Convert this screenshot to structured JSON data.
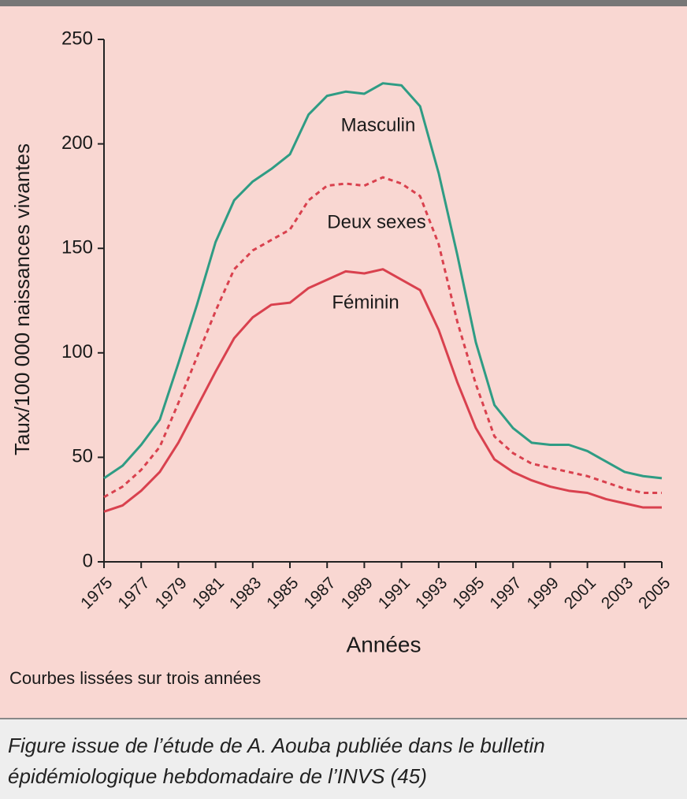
{
  "chart_data": {
    "type": "line",
    "y_label": "Taux/100 000 naissances vivantes",
    "x_label": "Années",
    "note": "Courbes lissées sur trois années",
    "x": [
      1975,
      1976,
      1977,
      1978,
      1979,
      1980,
      1981,
      1982,
      1983,
      1984,
      1985,
      1986,
      1987,
      1988,
      1989,
      1990,
      1991,
      1992,
      1993,
      1994,
      1995,
      1996,
      1997,
      1998,
      1999,
      2000,
      2001,
      2002,
      2003,
      2004,
      2005
    ],
    "series": [
      {
        "name": "Masculin",
        "color": "#2f9c84",
        "dashed": false,
        "values": [
          40,
          46,
          56,
          68,
          95,
          123,
          153,
          173,
          182,
          188,
          195,
          214,
          223,
          225,
          224,
          229,
          228,
          218,
          186,
          147,
          105,
          75,
          64,
          57,
          56,
          56,
          53,
          48,
          43,
          41,
          40
        ]
      },
      {
        "name": "Deux sexes",
        "color": "#d9414e",
        "dashed": true,
        "values": [
          31,
          36,
          44,
          55,
          76,
          98,
          120,
          140,
          149,
          154,
          159,
          173,
          180,
          181,
          180,
          184,
          181,
          175,
          152,
          115,
          85,
          60,
          52,
          47,
          45,
          43,
          41,
          38,
          35,
          33,
          33
        ]
      },
      {
        "name": "Féminin",
        "color": "#d9414e",
        "dashed": false,
        "values": [
          24,
          27,
          34,
          43,
          57,
          74,
          91,
          107,
          117,
          123,
          124,
          131,
          135,
          139,
          138,
          140,
          135,
          130,
          111,
          86,
          64,
          49,
          43,
          39,
          36,
          34,
          33,
          30,
          28,
          26,
          26
        ]
      }
    ],
    "xlim": [
      1975,
      2005
    ],
    "xticks": [
      1975,
      1977,
      1979,
      1981,
      1983,
      1985,
      1987,
      1989,
      1991,
      1993,
      1995,
      1997,
      1999,
      2001,
      2003,
      2005
    ],
    "ylim": [
      0,
      250
    ],
    "yticks": [
      0,
      50,
      100,
      150,
      200,
      250
    ],
    "grid": false
  },
  "caption": [
    "Figure issue de l’étude de A. Aouba publiée dans le bulletin",
    "épidémiologique hebdomadaire de l’INVS (45)"
  ]
}
